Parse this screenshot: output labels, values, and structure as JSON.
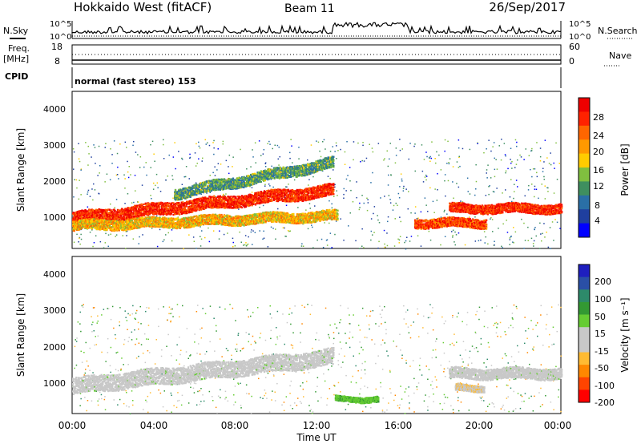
{
  "header": {
    "station": "Hokkaido West (fitACF)",
    "beam": "Beam 11",
    "date": "26/Sep/2017"
  },
  "strip_panel": {
    "left_label_1": "N.Sky",
    "left_label_2": "Freq.",
    "left_label_2_unit": "[MHz]",
    "left_label_3": "CPID",
    "right_label_1": "N.Search",
    "right_label_2": "Nave",
    "noise_ticks_left": [
      "10^5",
      "10^0"
    ],
    "noise_ticks_right": [
      "10^5",
      "10^0"
    ],
    "freq_ticks": [
      "18",
      "8"
    ],
    "nave_ticks": [
      "60",
      "0"
    ],
    "cpid_text": "normal (fast stereo) 153"
  },
  "colors": {
    "power_scale": [
      "#0000ff",
      "#1f3f9f",
      "#2a6fa6",
      "#3f8f5f",
      "#80bf3f",
      "#ffcc00",
      "#ff9900",
      "#ff6600",
      "#ff2200",
      "#ee0000"
    ],
    "velocity_scale": [
      "#ff0000",
      "#ff4400",
      "#ff8800",
      "#ffbb33",
      "#c8c8c8",
      "#c8c8c8",
      "#66cc33",
      "#339933",
      "#2d8a6a",
      "#2a4fa6",
      "#1f1fbf"
    ]
  },
  "chart_data": [
    {
      "type": "heatmap",
      "panel": "power",
      "xlabel": "",
      "ylabel": "Slant Range [km]",
      "x_ticks": [
        "00:00",
        "04:00",
        "08:00",
        "12:00",
        "16:00",
        "20:00",
        "00:00"
      ],
      "x_range_hours": [
        0,
        24
      ],
      "y_ticks": [
        "1000",
        "2000",
        "3000",
        "4000"
      ],
      "y_range_km": [
        180,
        4500
      ],
      "colorbar_label": "Power [dB]",
      "colorbar_ticks": [
        "4",
        "8",
        "12",
        "16",
        "20",
        "24",
        "28"
      ],
      "colorbar_range": [
        0,
        30
      ],
      "bands": [
        {
          "t": [
            0,
            12.8
          ],
          "r_start": [
            1050,
            2000
          ],
          "r_end": [
            1000,
            1600
          ],
          "width_km": 330,
          "level": 26,
          "name": "main echo band"
        },
        {
          "t": [
            0,
            13.0
          ],
          "r_start": [
            820,
            1200
          ],
          "r_end": [
            820,
            1000
          ],
          "width_km": 280,
          "level": 18,
          "name": "lower echo band"
        },
        {
          "t": [
            5.0,
            12.8
          ],
          "r_start": [
            1900,
            2800
          ],
          "r_end": [
            1500,
            2300
          ],
          "width_km": 300,
          "level": 11,
          "name": "upper scatter"
        },
        {
          "t": [
            18.5,
            24
          ],
          "r_start": [
            1300,
            1300
          ],
          "r_end": [
            1300,
            1300
          ],
          "width_km": 260,
          "level": 26,
          "name": "late band"
        },
        {
          "t": [
            16.8,
            20.3
          ],
          "r_start": [
            900,
            900
          ],
          "r_end": [
            900,
            900
          ],
          "width_km": 250,
          "level": 24,
          "name": "afternoon band"
        }
      ]
    },
    {
      "type": "heatmap",
      "panel": "velocity",
      "xlabel": "Time UT",
      "ylabel": "Slant Range [km]",
      "x_ticks": [
        "00:00",
        "04:00",
        "08:00",
        "12:00",
        "16:00",
        "20:00",
        "00:00"
      ],
      "x_range_hours": [
        0,
        24
      ],
      "y_ticks": [
        "1000",
        "2000",
        "3000",
        "4000"
      ],
      "y_range_km": [
        180,
        4500
      ],
      "colorbar_label": "Velocity [m s⁻¹]",
      "colorbar_ticks": [
        "200",
        "100",
        "50",
        "15",
        "-15",
        "-50",
        "-100",
        "-200"
      ],
      "colorbar_range": [
        -250,
        250
      ],
      "bands": [
        {
          "t": [
            0,
            12.8
          ],
          "r_start": [
            1050,
            2000
          ],
          "r_end": [
            850,
            1500
          ],
          "width_km": 450,
          "velocity": 0,
          "name": "ground scatter"
        },
        {
          "t": [
            18.5,
            24
          ],
          "r_start": [
            1300,
            1300
          ],
          "r_end": [
            1300,
            1300
          ],
          "width_km": 300,
          "velocity": 0,
          "name": "late ground scatter"
        },
        {
          "t": [
            18.8,
            20.2
          ],
          "r_start": [
            900,
            900
          ],
          "r_end": [
            900,
            900
          ],
          "width_km": 180,
          "velocity": -60,
          "name": "orange patch"
        },
        {
          "t": [
            12.9,
            15.0
          ],
          "r_start": [
            600,
            600
          ],
          "r_end": [
            600,
            600
          ],
          "width_km": 150,
          "velocity": 60,
          "name": "green patch"
        }
      ]
    }
  ]
}
